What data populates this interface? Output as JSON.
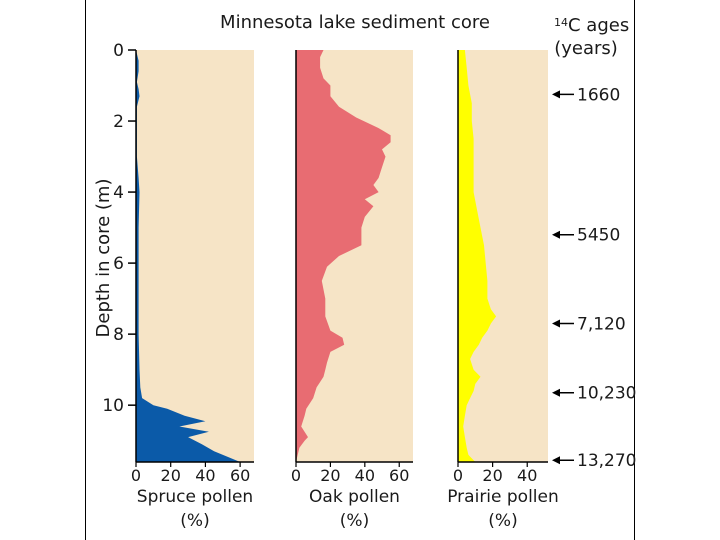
{
  "chart_data": {
    "type": "area",
    "title": "Minnesota lake sediment core",
    "ylabel": "Depth in core (m)",
    "ylim": [
      0,
      11.6
    ],
    "y_ticks": [
      "0",
      "2",
      "4",
      "6",
      "8",
      "10"
    ],
    "y_tick_values": [
      0,
      2,
      4,
      6,
      8,
      10
    ],
    "right_axis": {
      "title_super": "14",
      "title_main": "C ages",
      "title_sub": "(years)",
      "labels": [
        "1660",
        "5450",
        "7,120",
        "10,230",
        "13,270"
      ],
      "depths": [
        1.25,
        5.2,
        7.7,
        9.65,
        11.55
      ]
    },
    "panels": [
      {
        "name": "Spruce pollen",
        "xlabel_line1": "Spruce pollen",
        "xlabel_line2": "(%)",
        "color": "#0b5aa8",
        "xlim": [
          0,
          68
        ],
        "x_ticks": [
          "0",
          "20",
          "40",
          "60"
        ],
        "x_tick_values": [
          0,
          20,
          40,
          60
        ],
        "depth": [
          0,
          0.3,
          0.6,
          0.9,
          1.1,
          1.3,
          1.6,
          2.0,
          3.0,
          3.6,
          4.0,
          5.0,
          6.0,
          7.0,
          8.0,
          9.0,
          9.5,
          9.8,
          10.0,
          10.1,
          10.3,
          10.45,
          10.6,
          10.75,
          10.9,
          11.1,
          11.3,
          11.5,
          11.6
        ],
        "values": [
          0,
          1.5,
          1.5,
          0.5,
          1.5,
          2,
          0.5,
          0.5,
          0.5,
          1.5,
          2,
          1.5,
          1.5,
          1.5,
          1.5,
          2,
          2.5,
          3.5,
          10,
          18,
          28,
          40,
          25,
          42,
          30,
          38,
          45,
          55,
          60
        ]
      },
      {
        "name": "Oak pollen",
        "xlabel_line1": "Oak pollen",
        "xlabel_line2": "(%)",
        "color": "#e86c72",
        "xlim": [
          0,
          68
        ],
        "x_ticks": [
          "0",
          "20",
          "40",
          "60"
        ],
        "x_tick_values": [
          0,
          20,
          40,
          60
        ],
        "depth": [
          0,
          0.2,
          0.5,
          0.8,
          1.0,
          1.3,
          1.6,
          1.9,
          2.2,
          2.4,
          2.6,
          2.8,
          3.0,
          3.3,
          3.6,
          3.8,
          4.0,
          4.2,
          4.4,
          4.7,
          5.0,
          5.5,
          5.8,
          6.1,
          6.5,
          7.0,
          7.5,
          7.9,
          8.1,
          8.3,
          8.5,
          8.8,
          9.0,
          9.2,
          9.5,
          9.8,
          10.1,
          10.3,
          10.6,
          10.9,
          11.0,
          11.2,
          11.4,
          11.6
        ],
        "values": [
          16,
          14,
          14,
          16,
          20,
          20,
          25,
          35,
          48,
          55,
          55,
          50,
          52,
          50,
          48,
          45,
          48,
          40,
          45,
          40,
          38,
          38,
          25,
          18,
          15,
          17,
          17,
          20,
          27,
          28,
          20,
          18,
          17,
          16,
          12,
          10,
          6,
          5,
          3,
          7,
          5,
          2,
          1,
          0
        ]
      },
      {
        "name": "Prairie pollen",
        "xlabel_line1": "Prairie pollen",
        "xlabel_line2": "(%)",
        "color": "#ffff00",
        "xlim": [
          0,
          52
        ],
        "x_ticks": [
          "0",
          "20",
          "40"
        ],
        "x_tick_values": [
          0,
          20,
          40
        ],
        "depth": [
          0,
          0.5,
          1.0,
          1.5,
          2.0,
          2.5,
          3.0,
          3.5,
          4.0,
          4.5,
          5.0,
          5.5,
          6.0,
          6.5,
          7.0,
          7.3,
          7.5,
          7.7,
          7.9,
          8.1,
          8.3,
          8.5,
          8.7,
          9.0,
          9.2,
          9.4,
          9.6,
          9.8,
          10.0,
          10.3,
          10.6,
          10.9,
          11.2,
          11.4,
          11.6
        ],
        "values": [
          4,
          5,
          6,
          8,
          8,
          9,
          9,
          9,
          9,
          11,
          13,
          15,
          16,
          17,
          17,
          19,
          22,
          19,
          17,
          14,
          12,
          9,
          7,
          9,
          13,
          10,
          9,
          7,
          5,
          4,
          3,
          4,
          5,
          6,
          10
        ]
      }
    ]
  }
}
